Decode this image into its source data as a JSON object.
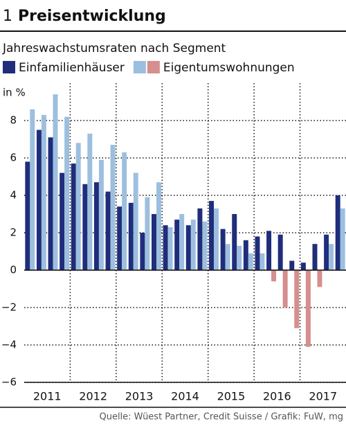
{
  "chart_data": {
    "type": "bar",
    "number": "1",
    "title": "Preisentwicklung",
    "subtitle": "Jahreswachstumsraten nach Segment",
    "y_label": "in %",
    "source": "Quelle: Wüest Partner, Credit Suisse / Grafik: FuW, mg",
    "years": [
      "2011",
      "2012",
      "2013",
      "2014",
      "2015",
      "2016",
      "2017"
    ],
    "categories": [
      null,
      null,
      null,
      null,
      null,
      null,
      null,
      null,
      null,
      null,
      null,
      null,
      null,
      null,
      null,
      null,
      null,
      null,
      null,
      null,
      null,
      null,
      null,
      null,
      null,
      null,
      null,
      null
    ],
    "series": [
      {
        "name": "Einfamilienhäuser",
        "color": "#1f2d7a",
        "values": [
          5.8,
          7.5,
          7.1,
          5.2,
          5.7,
          4.6,
          4.7,
          4.2,
          3.4,
          3.6,
          2.0,
          3.0,
          2.4,
          2.7,
          2.4,
          3.3,
          3.7,
          2.2,
          3.0,
          1.6,
          1.8,
          2.1,
          1.9,
          0.5,
          0.4,
          1.4,
          1.9,
          4.0
        ]
      },
      {
        "name": "Eigentumswohnungen",
        "color": "#9dbfdf",
        "negative_color": "#d68e8e",
        "values": [
          8.6,
          8.3,
          9.4,
          8.2,
          6.8,
          7.3,
          5.9,
          6.7,
          6.3,
          5.2,
          3.9,
          4.7,
          2.3,
          3.0,
          2.7,
          2.6,
          3.3,
          1.4,
          1.3,
          0.9,
          0.9,
          -0.6,
          -2.0,
          -3.1,
          -4.1,
          -0.9,
          1.4,
          3.3
        ]
      }
    ],
    "ylim": [
      -6,
      10
    ],
    "yticks": [
      {
        "value": -6,
        "label": "−6"
      },
      {
        "value": -4,
        "label": "−4"
      },
      {
        "value": -2,
        "label": "−2"
      },
      0,
      2,
      4,
      6,
      8
    ],
    "grid": true
  }
}
